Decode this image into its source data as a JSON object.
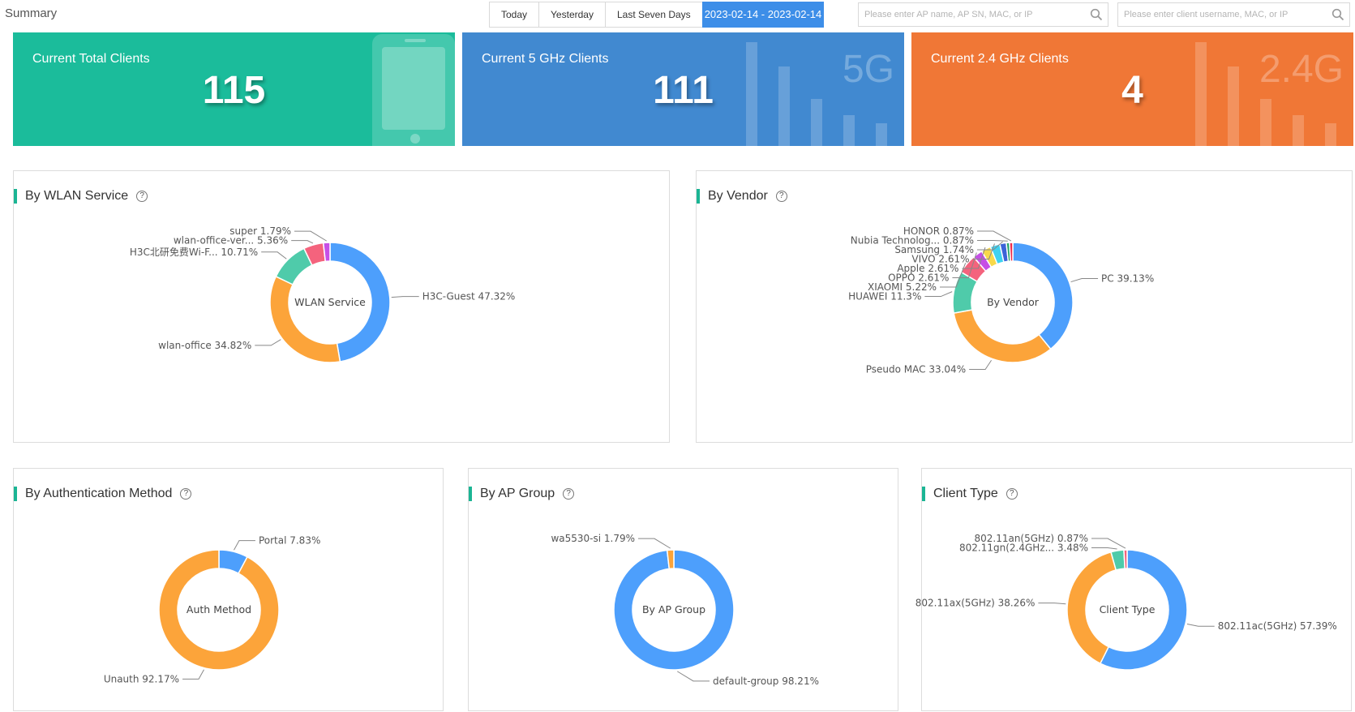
{
  "header": {
    "title": "Summary",
    "buttons": [
      "Today",
      "Yesterday",
      "Last Seven Days"
    ],
    "date_range": "2023-02-14 - 2023-02-14",
    "ap_search_placeholder": "Please enter AP name, AP SN, MAC, or IP",
    "client_search_placeholder": "Please enter client username, MAC, or IP"
  },
  "cards": [
    {
      "label": "Current Total Clients",
      "value": "115",
      "color": "#1bbc9b"
    },
    {
      "label": "Current 5 GHz Clients",
      "value": "111",
      "color": "#4189d0",
      "watermark": "5G"
    },
    {
      "label": "Current 2.4 GHz Clients",
      "value": "4",
      "color": "#f07736",
      "watermark": "2.4G"
    }
  ],
  "panels": {
    "wlan": {
      "title": "By WLAN Service",
      "center": "WLAN Service"
    },
    "vendor": {
      "title": "By Vendor",
      "center": "By Vendor"
    },
    "auth": {
      "title": "By Authentication Method",
      "center": "Auth Method"
    },
    "apgroup": {
      "title": "By AP Group",
      "center": "By AP Group"
    },
    "clienttype": {
      "title": "Client Type",
      "center": "Client Type"
    }
  },
  "chart_data": [
    {
      "type": "pie",
      "title": "By WLAN Service",
      "slices": [
        {
          "name": "H3C-Guest",
          "value": 47.32,
          "label": "H3C-Guest 47.32%",
          "color": "#4d9ffc"
        },
        {
          "name": "wlan-office",
          "value": 34.82,
          "label": "wlan-office 34.82%",
          "color": "#fca43a"
        },
        {
          "name": "H3C北研免费Wi-F...",
          "value": 10.71,
          "label": "H3C北研免费Wi-F... 10.71%",
          "color": "#4fcbaa"
        },
        {
          "name": "wlan-office-ver...",
          "value": 5.36,
          "label": "wlan-office-ver... 5.36%",
          "color": "#f4637d"
        },
        {
          "name": "super",
          "value": 1.79,
          "label": "super 1.79%",
          "color": "#c64fe6"
        }
      ]
    },
    {
      "type": "pie",
      "title": "By Vendor",
      "slices": [
        {
          "name": "PC",
          "value": 39.13,
          "label": "PC 39.13%",
          "color": "#4d9ffc"
        },
        {
          "name": "Pseudo MAC",
          "value": 33.04,
          "label": "Pseudo MAC 33.04%",
          "color": "#fca43a"
        },
        {
          "name": "HUAWEI",
          "value": 11.3,
          "label": "HUAWEI 11.3%",
          "color": "#4fcbaa"
        },
        {
          "name": "XIAOMI",
          "value": 5.22,
          "label": "XIAOMI 5.22%",
          "color": "#f4637d"
        },
        {
          "name": "OPPO",
          "value": 2.61,
          "label": "OPPO 2.61%",
          "color": "#c64fe6"
        },
        {
          "name": "Apple",
          "value": 2.61,
          "label": "Apple 2.61%",
          "color": "#f8d94a"
        },
        {
          "name": "VIVO",
          "value": 2.61,
          "label": "VIVO 2.61%",
          "color": "#3ed2f0"
        },
        {
          "name": "Samsung",
          "value": 1.74,
          "label": "Samsung 1.74%",
          "color": "#3b63d8"
        },
        {
          "name": "Nubia Technolog...",
          "value": 0.87,
          "label": "Nubia Technolog... 0.87%",
          "color": "#26a56a"
        },
        {
          "name": "HONOR",
          "value": 0.87,
          "label": "HONOR 0.87%",
          "color": "#ee2b4b"
        }
      ]
    },
    {
      "type": "pie",
      "title": "By Authentication Method",
      "slices": [
        {
          "name": "Portal",
          "value": 7.83,
          "label": "Portal 7.83%",
          "color": "#4d9ffc"
        },
        {
          "name": "Unauth",
          "value": 92.17,
          "label": "Unauth 92.17%",
          "color": "#fca43a"
        }
      ]
    },
    {
      "type": "pie",
      "title": "By AP Group",
      "slices": [
        {
          "name": "default-group",
          "value": 98.21,
          "label": "default-group 98.21%",
          "color": "#4d9ffc"
        },
        {
          "name": "wa5530-si",
          "value": 1.79,
          "label": "wa5530-si 1.79%",
          "color": "#fca43a"
        }
      ]
    },
    {
      "type": "pie",
      "title": "Client Type",
      "slices": [
        {
          "name": "802.11ac(5GHz)",
          "value": 57.39,
          "label": "802.11ac(5GHz) 57.39%",
          "color": "#4d9ffc"
        },
        {
          "name": "802.11ax(5GHz)",
          "value": 38.26,
          "label": "802.11ax(5GHz) 38.26%",
          "color": "#fca43a"
        },
        {
          "name": "802.11gn(2.4GHz...",
          "value": 3.48,
          "label": "802.11gn(2.4GHz... 3.48%",
          "color": "#4fcbaa"
        },
        {
          "name": "802.11an(5GHz)",
          "value": 0.87,
          "label": "802.11an(5GHz) 0.87%",
          "color": "#f4637d"
        }
      ]
    }
  ]
}
